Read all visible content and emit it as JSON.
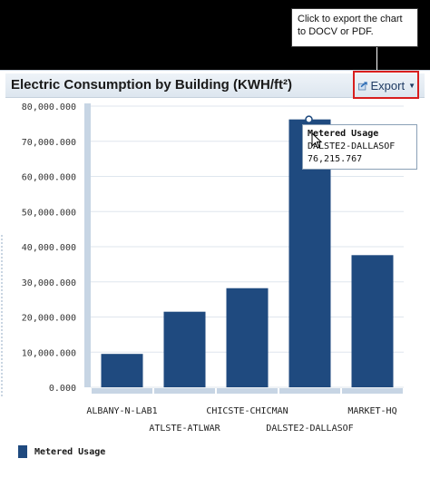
{
  "callout": {
    "text": "Click to export the chart to DOCV or PDF."
  },
  "header": {
    "title": "Electric Consumption by Building (KWH/ft²)"
  },
  "export": {
    "label": "Export",
    "icon": "export-icon"
  },
  "chart_data": {
    "type": "bar",
    "title": "Electric Consumption by Building (KWH/ft²)",
    "categories": [
      "ALBANY-N-LAB1",
      "ATLSTE-ATLWAR",
      "CHICSTE-CHICMAN",
      "DALSTE2-DALLASOF",
      "MARKET-HQ"
    ],
    "series": [
      {
        "name": "Metered Usage",
        "values": [
          9500,
          21500,
          28200,
          76215.767,
          37600
        ],
        "color": "#1f4a7f"
      }
    ],
    "yticks": [
      "0.000",
      "10,000.000",
      "20,000.000",
      "30,000.000",
      "40,000.000",
      "50,000.000",
      "60,000.000",
      "70,000.000",
      "80,000.000"
    ],
    "ylim": [
      0,
      80000
    ],
    "grid": true,
    "legend": "bottom-left"
  },
  "tooltip": {
    "series": "Metered Usage",
    "category": "DALSTE2-DALLASOF",
    "value": "76,215.767"
  },
  "legend": {
    "label": "Metered Usage"
  }
}
